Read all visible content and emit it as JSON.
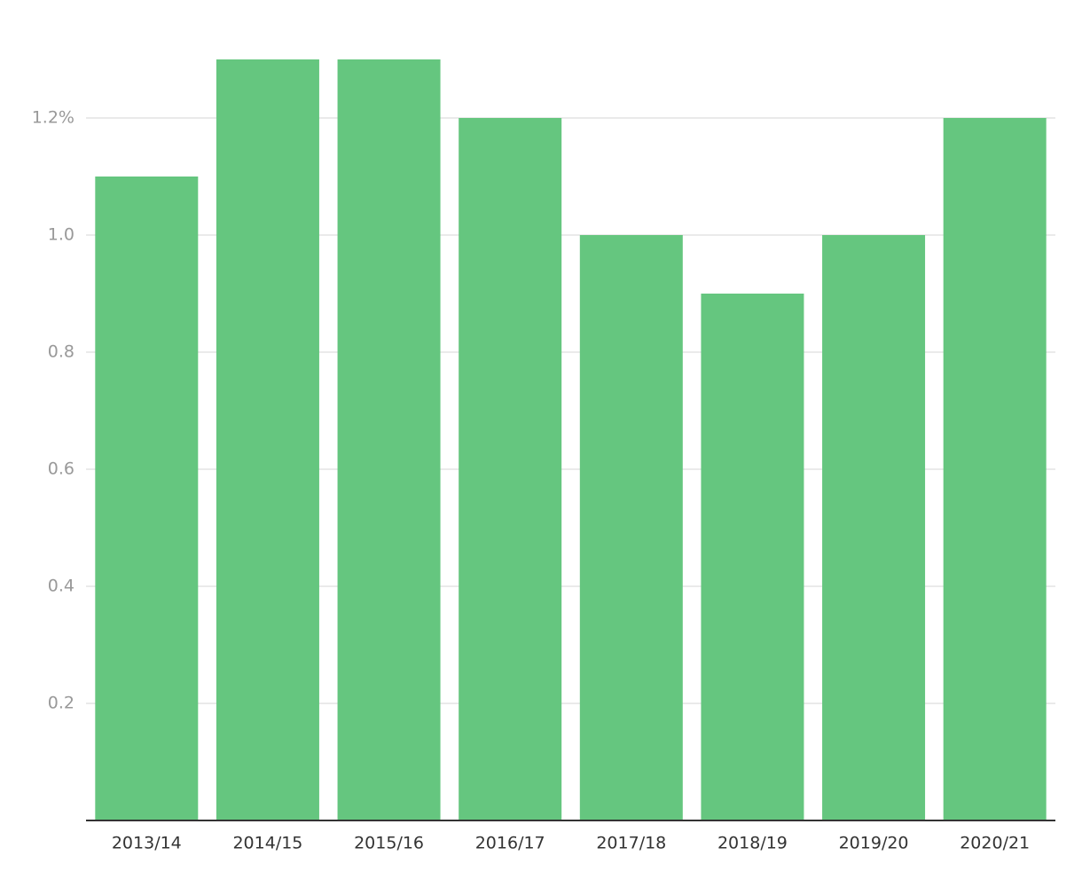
{
  "chart_data": {
    "type": "bar",
    "categories": [
      "2013/14",
      "2014/15",
      "2015/16",
      "2016/17",
      "2017/18",
      "2018/19",
      "2019/20",
      "2020/21"
    ],
    "values": [
      1.1,
      1.3,
      1.3,
      1.2,
      1.0,
      0.9,
      1.0,
      1.2
    ],
    "color": "#65c67f",
    "ylim": [
      0,
      1.3
    ],
    "yticks": [
      0.2,
      0.4,
      0.6,
      0.8,
      {
        "value": 1,
        "label": "1.0"
      },
      {
        "value": 1.2,
        "label": "1.2%"
      }
    ],
    "grid": true
  }
}
